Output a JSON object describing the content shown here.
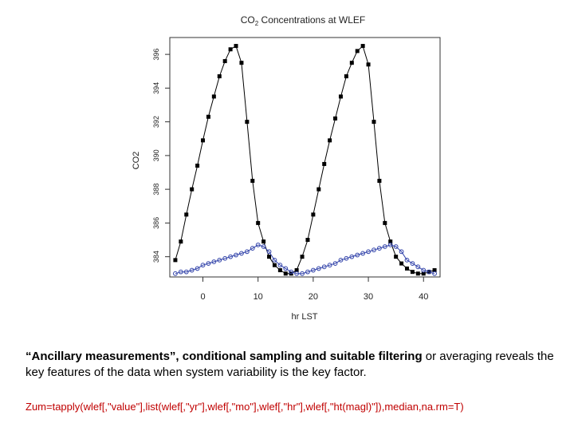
{
  "chart_data": {
    "type": "line",
    "title_main": "CO",
    "title_sub": "2",
    "title_rest": " Concentrations at WLEF",
    "xlabel": "hr LST",
    "ylabel": "CO2",
    "xlim": [
      -6,
      43
    ],
    "ylim": [
      382.8,
      397
    ],
    "xticks": [
      0,
      10,
      20,
      30,
      40
    ],
    "yticks": [
      384,
      386,
      388,
      390,
      392,
      394,
      396
    ],
    "xtick_labels": [
      "0",
      "10",
      "20",
      "30",
      "40"
    ],
    "ytick_labels": [
      "384",
      "386",
      "388",
      "390",
      "392",
      "394",
      "396"
    ],
    "grid": false,
    "legend": "none",
    "series": [
      {
        "marker": "filled-square",
        "color": "#000000",
        "x": [
          -5,
          -4,
          -3,
          -2,
          -1,
          0,
          1,
          2,
          3,
          4,
          5,
          6,
          7,
          8,
          9,
          10,
          11,
          12,
          13,
          14,
          15,
          16,
          17,
          18,
          19,
          20,
          21,
          22,
          23,
          24,
          25,
          26,
          27,
          28,
          29,
          30,
          31,
          32,
          33,
          34,
          35,
          36,
          37,
          38,
          39,
          40,
          41,
          42
        ],
        "y": [
          383.8,
          384.9,
          386.5,
          388.0,
          389.4,
          390.9,
          392.3,
          393.5,
          394.7,
          395.6,
          396.3,
          396.5,
          395.5,
          392.0,
          388.5,
          386.0,
          384.9,
          384.0,
          383.5,
          383.2,
          383.0,
          383.0,
          383.2,
          384.0,
          385.0,
          386.5,
          388.0,
          389.5,
          390.9,
          392.2,
          393.5,
          394.7,
          395.5,
          396.2,
          396.5,
          395.4,
          392.0,
          388.5,
          386.0,
          384.9,
          384.0,
          383.6,
          383.3,
          383.1,
          383.0,
          383.0,
          383.1,
          383.2
        ]
      },
      {
        "marker": "open-circle",
        "color": "#3344aa",
        "x": [
          -5,
          -4,
          -3,
          -2,
          -1,
          0,
          1,
          2,
          3,
          4,
          5,
          6,
          7,
          8,
          9,
          10,
          11,
          12,
          13,
          14,
          15,
          16,
          17,
          18,
          19,
          20,
          21,
          22,
          23,
          24,
          25,
          26,
          27,
          28,
          29,
          30,
          31,
          32,
          33,
          34,
          35,
          36,
          37,
          38,
          39,
          40,
          41,
          42
        ],
        "y": [
          383.0,
          383.1,
          383.1,
          383.2,
          383.3,
          383.5,
          383.6,
          383.7,
          383.8,
          383.9,
          384.0,
          384.1,
          384.2,
          384.3,
          384.5,
          384.7,
          384.6,
          384.3,
          383.8,
          383.5,
          383.3,
          383.1,
          383.0,
          383.0,
          383.1,
          383.2,
          383.3,
          383.4,
          383.5,
          383.6,
          383.8,
          383.9,
          384.0,
          384.1,
          384.2,
          384.3,
          384.4,
          384.5,
          384.6,
          384.7,
          384.6,
          384.3,
          383.8,
          383.6,
          383.4,
          383.2,
          383.1,
          383.0
        ]
      }
    ]
  },
  "caption": {
    "quote": "“Ancillary measurements”, conditional sampling and suitable filtering",
    "rest": " or averaging reveals the key features of the data when system variability is the key factor."
  },
  "code_line": "Zum=tapply(wlef[,\"value\"],list(wlef[,\"yr\"],wlef[,\"mo\"],wlef[,\"hr\"],wlef[,\"ht(magl)\"]),median,na.rm=T)"
}
